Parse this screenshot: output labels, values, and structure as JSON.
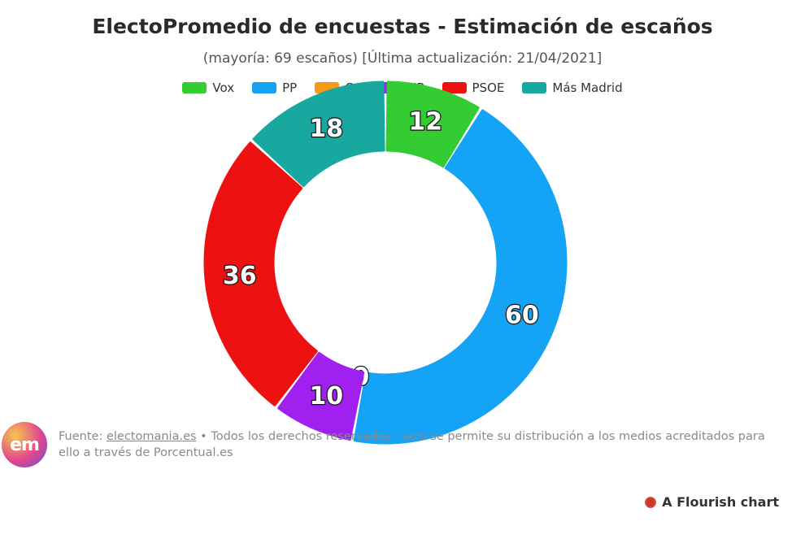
{
  "chart_data": {
    "type": "pie",
    "title": "ElectoPromedio de encuestas - Estimación de escaños",
    "subtitle": "(mayoría: 69 escaños) [Última actualización: 21/04/2021]",
    "categories": [
      "Vox",
      "PP",
      "Cs",
      "UP",
      "PSOE",
      "Más Madrid"
    ],
    "values": [
      12,
      60,
      0,
      10,
      36,
      18
    ],
    "colors": [
      "#33cc33",
      "#14a3f5",
      "#f59a12",
      "#a020f0",
      "#ee1111",
      "#18a8a0"
    ],
    "legend_position": "top",
    "donut": true
  },
  "footer": {
    "logo_text": "em",
    "source_prefix": "Fuente: ",
    "source_link": "electomania.es",
    "source_rest": " • Todos los derechos reservados - solo se permite su distribución a los medios acreditados para ello a través de Porcentual.es"
  },
  "branding": {
    "flourish_label": "A Flourish chart"
  }
}
